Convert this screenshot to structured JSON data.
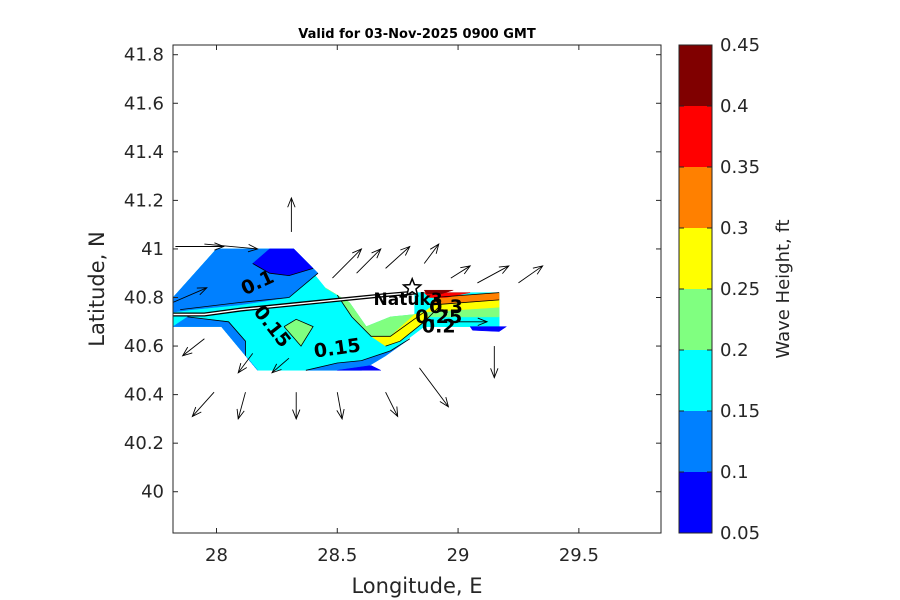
{
  "chart_data": {
    "type": "filled-contour",
    "title": "Valid for 03-Nov-2025 0900 GMT",
    "xlabel": "Longitude, E",
    "ylabel": "Latitude, N",
    "xlim": [
      27.82,
      29.84
    ],
    "ylim": [
      39.83,
      41.84
    ],
    "xticks": [
      {
        "value": 28,
        "label": "28"
      },
      {
        "value": 28.5,
        "label": "28.5"
      },
      {
        "value": 29,
        "label": "29"
      },
      {
        "value": 29.5,
        "label": "29.5"
      }
    ],
    "yticks": [
      {
        "value": 40,
        "label": "40"
      },
      {
        "value": 40.2,
        "label": "40.2"
      },
      {
        "value": 40.4,
        "label": "40.4"
      },
      {
        "value": 40.6,
        "label": "40.6"
      },
      {
        "value": 40.8,
        "label": "40.8"
      },
      {
        "value": 41,
        "label": "41"
      },
      {
        "value": 41.2,
        "label": "41.2"
      },
      {
        "value": 41.4,
        "label": "41.4"
      },
      {
        "value": 41.6,
        "label": "41.6"
      },
      {
        "value": 41.8,
        "label": "41.8"
      }
    ],
    "colorbar": {
      "label": "Wave Height, ft",
      "min": 0.05,
      "max": 0.45,
      "ticks": [
        {
          "value": 0.05,
          "label": "0.05"
        },
        {
          "value": 0.1,
          "label": "0.1"
        },
        {
          "value": 0.15,
          "label": "0.15"
        },
        {
          "value": 0.2,
          "label": "0.2"
        },
        {
          "value": 0.25,
          "label": "0.25"
        },
        {
          "value": 0.3,
          "label": "0.3"
        },
        {
          "value": 0.35,
          "label": "0.35"
        },
        {
          "value": 0.4,
          "label": "0.4"
        },
        {
          "value": 0.45,
          "label": "0.45"
        }
      ],
      "bands": [
        {
          "from": 0.05,
          "to": 0.1,
          "color": "#0000ff"
        },
        {
          "from": 0.1,
          "to": 0.15,
          "color": "#0080ff"
        },
        {
          "from": 0.15,
          "to": 0.2,
          "color": "#00ffff"
        },
        {
          "from": 0.2,
          "to": 0.25,
          "color": "#80ff80"
        },
        {
          "from": 0.25,
          "to": 0.3,
          "color": "#ffff00"
        },
        {
          "from": 0.3,
          "to": 0.35,
          "color": "#ff8000"
        },
        {
          "from": 0.35,
          "to": 0.4,
          "color": "#ff0000"
        },
        {
          "from": 0.4,
          "to": 0.45,
          "color": "#800000"
        }
      ]
    },
    "filled_regions": [
      {
        "name": "base-0.15-0.2",
        "color": "#00ffff",
        "points": [
          [
            27.82,
            40.8
          ],
          [
            28.0,
            41.0
          ],
          [
            28.32,
            41.0
          ],
          [
            28.45,
            40.84
          ],
          [
            28.55,
            40.78
          ],
          [
            28.62,
            40.68
          ],
          [
            28.72,
            40.72
          ],
          [
            28.82,
            40.73
          ],
          [
            28.82,
            40.82
          ],
          [
            29.17,
            40.82
          ],
          [
            29.17,
            40.68
          ],
          [
            28.86,
            40.68
          ],
          [
            28.7,
            40.56
          ],
          [
            28.6,
            40.5
          ],
          [
            28.17,
            40.5
          ],
          [
            28.02,
            40.68
          ],
          [
            27.82,
            40.68
          ]
        ]
      },
      {
        "name": "band-0.1-0.15-north",
        "color": "#0080ff",
        "points": [
          [
            27.82,
            40.8
          ],
          [
            28.0,
            41.0
          ],
          [
            28.32,
            41.0
          ],
          [
            28.42,
            40.9
          ],
          [
            28.3,
            40.8
          ],
          [
            28.1,
            40.77
          ],
          [
            27.9,
            40.75
          ],
          [
            27.82,
            40.74
          ]
        ]
      },
      {
        "name": "band-0.05-0.1-north",
        "color": "#0000ff",
        "points": [
          [
            28.22,
            41.0
          ],
          [
            28.32,
            41.0
          ],
          [
            28.4,
            40.92
          ],
          [
            28.3,
            40.89
          ],
          [
            28.22,
            40.9
          ],
          [
            28.15,
            40.94
          ]
        ]
      },
      {
        "name": "band-0.1-0.15-south-left",
        "color": "#0080ff",
        "points": [
          [
            27.82,
            40.68
          ],
          [
            27.88,
            40.72
          ],
          [
            28.05,
            40.7
          ],
          [
            28.12,
            40.62
          ],
          [
            28.12,
            40.56
          ],
          [
            28.17,
            40.5
          ],
          [
            28.02,
            40.68
          ]
        ]
      },
      {
        "name": "band-0.1-0.15-south",
        "color": "#0080ff",
        "points": [
          [
            28.37,
            40.5
          ],
          [
            28.6,
            40.5
          ],
          [
            28.7,
            40.56
          ],
          [
            28.8,
            40.63
          ],
          [
            28.72,
            40.58
          ],
          [
            28.6,
            40.54
          ],
          [
            28.5,
            40.53
          ]
        ]
      },
      {
        "name": "band-0.05-0.1-south",
        "color": "#0000ff",
        "points": [
          [
            28.5,
            40.5
          ],
          [
            28.68,
            40.5
          ],
          [
            28.64,
            40.52
          ]
        ]
      },
      {
        "name": "band-0.2-0.25-island",
        "color": "#80ff80",
        "points": [
          [
            28.28,
            40.68
          ],
          [
            28.33,
            40.71
          ],
          [
            28.4,
            40.68
          ],
          [
            28.35,
            40.6
          ]
        ]
      },
      {
        "name": "band-0.2-0.25-east",
        "color": "#80ff80",
        "points": [
          [
            28.45,
            40.84
          ],
          [
            28.55,
            40.78
          ],
          [
            28.62,
            40.68
          ],
          [
            28.72,
            40.72
          ],
          [
            28.82,
            40.73
          ],
          [
            28.86,
            40.74
          ],
          [
            28.72,
            40.64
          ],
          [
            28.64,
            40.64
          ],
          [
            28.56,
            40.72
          ],
          [
            28.5,
            40.81
          ]
        ]
      },
      {
        "name": "band-0.25-0.3",
        "color": "#ffff00",
        "points": [
          [
            28.82,
            40.73
          ],
          [
            28.86,
            40.74
          ],
          [
            28.92,
            40.76
          ],
          [
            28.86,
            40.7
          ],
          [
            28.76,
            40.62
          ],
          [
            28.7,
            40.6
          ],
          [
            28.64,
            40.64
          ],
          [
            28.72,
            40.64
          ]
        ]
      },
      {
        "name": "band-0.15-0.2-sw-pocket",
        "color": "#00ffff",
        "points": [
          [
            28.88,
            40.72
          ],
          [
            29.17,
            40.72
          ],
          [
            29.17,
            40.68
          ],
          [
            28.86,
            40.68
          ]
        ]
      },
      {
        "name": "band-0.2-0.25-east-strip",
        "color": "#80ff80",
        "points": [
          [
            28.86,
            40.74
          ],
          [
            29.17,
            40.76
          ],
          [
            29.17,
            40.72
          ],
          [
            28.88,
            40.72
          ]
        ]
      },
      {
        "name": "band-0.25-0.3-east-strip",
        "color": "#ffff00",
        "points": [
          [
            28.9,
            40.77
          ],
          [
            29.17,
            40.79
          ],
          [
            29.17,
            40.76
          ],
          [
            28.86,
            40.74
          ]
        ]
      },
      {
        "name": "band-0.3-0.35",
        "color": "#ff8000",
        "points": [
          [
            28.9,
            40.8
          ],
          [
            29.17,
            40.82
          ],
          [
            29.17,
            40.79
          ],
          [
            28.9,
            40.77
          ]
        ]
      },
      {
        "name": "band-0.35-0.4",
        "color": "#ff0000",
        "points": [
          [
            28.86,
            40.82
          ],
          [
            29.05,
            40.82
          ],
          [
            28.95,
            40.8
          ],
          [
            28.88,
            40.8
          ]
        ]
      },
      {
        "name": "band-0.4-0.45",
        "color": "#800000",
        "points": [
          [
            28.86,
            40.83
          ],
          [
            28.98,
            40.83
          ],
          [
            28.93,
            40.815
          ],
          [
            28.87,
            40.815
          ]
        ]
      },
      {
        "name": "band-0.05-0.1-east-tip",
        "color": "#0000ff",
        "points": [
          [
            29.05,
            40.68
          ],
          [
            29.2,
            40.68
          ],
          [
            29.17,
            40.66
          ],
          [
            29.06,
            40.665
          ]
        ]
      }
    ],
    "contour_lines": [
      {
        "level": 0.1,
        "points": [
          [
            27.85,
            40.75
          ],
          [
            28.1,
            40.78
          ],
          [
            28.3,
            40.8
          ],
          [
            28.42,
            40.9
          ]
        ]
      },
      {
        "level": 0.1,
        "points": [
          [
            28.15,
            40.94
          ],
          [
            28.22,
            40.9
          ],
          [
            28.3,
            40.89
          ],
          [
            28.4,
            40.92
          ]
        ]
      },
      {
        "level": 0.15,
        "points": [
          [
            28.12,
            40.56
          ],
          [
            28.12,
            40.62
          ],
          [
            28.05,
            40.7
          ],
          [
            27.88,
            40.72
          ]
        ]
      },
      {
        "level": 0.15,
        "points": [
          [
            28.37,
            40.5
          ],
          [
            28.5,
            40.53
          ],
          [
            28.6,
            40.54
          ],
          [
            28.72,
            40.58
          ],
          [
            28.8,
            40.63
          ]
        ]
      },
      {
        "level": 0.2,
        "points": [
          [
            28.5,
            40.81
          ],
          [
            28.56,
            40.72
          ],
          [
            28.64,
            40.64
          ],
          [
            28.72,
            40.64
          ],
          [
            28.86,
            40.74
          ]
        ]
      },
      {
        "level": 0.2,
        "points": [
          [
            28.28,
            40.68
          ],
          [
            28.33,
            40.71
          ],
          [
            28.4,
            40.68
          ],
          [
            28.35,
            40.6
          ],
          [
            28.28,
            40.68
          ]
        ]
      },
      {
        "level": 0.25,
        "points": [
          [
            28.7,
            40.6
          ],
          [
            28.76,
            40.62
          ],
          [
            28.86,
            40.7
          ],
          [
            28.92,
            40.76
          ]
        ]
      },
      {
        "level": 0.3,
        "points": [
          [
            28.9,
            40.77
          ],
          [
            29.17,
            40.79
          ]
        ]
      },
      {
        "level": 0.35,
        "points": [
          [
            28.9,
            40.8
          ],
          [
            29.17,
            40.82
          ]
        ]
      }
    ],
    "contour_labels": [
      {
        "text": "0.1",
        "lon": 28.17,
        "lat": 40.86,
        "angle": 25
      },
      {
        "text": "0.15",
        "lon": 28.23,
        "lat": 40.68,
        "angle": -52
      },
      {
        "text": "0.15",
        "lon": 28.5,
        "lat": 40.59,
        "angle": 8
      },
      {
        "text": "0.25",
        "lon": 28.92,
        "lat": 40.72,
        "angle": 0
      },
      {
        "text": "0.3",
        "lon": 28.95,
        "lat": 40.76,
        "angle": 0
      },
      {
        "text": "0.2",
        "lon": 28.92,
        "lat": 40.68,
        "angle": 0
      }
    ],
    "coastline": [
      [
        27.82,
        40.73
      ],
      [
        27.95,
        40.73
      ],
      [
        28.1,
        40.75
      ],
      [
        28.3,
        40.77
      ],
      [
        28.5,
        40.79
      ],
      [
        28.7,
        40.81
      ],
      [
        28.82,
        40.82
      ]
    ],
    "station": {
      "name": "Natuk3",
      "lon": 28.81,
      "lat": 40.84,
      "label_lon": 28.65,
      "label_lat": 40.77
    },
    "wind_vectors": [
      {
        "lon": 27.83,
        "lat": 41.01,
        "u": 0.2,
        "v": 0.0
      },
      {
        "lon": 27.95,
        "lat": 41.02,
        "u": 0.22,
        "v": -0.02
      },
      {
        "lon": 27.82,
        "lat": 40.78,
        "u": 0.14,
        "v": 0.06
      },
      {
        "lon": 28.31,
        "lat": 41.07,
        "u": 0.0,
        "v": 0.14
      },
      {
        "lon": 28.4,
        "lat": 40.95,
        "u": 0.0,
        "v": 0.0
      },
      {
        "lon": 28.48,
        "lat": 40.88,
        "u": 0.12,
        "v": 0.12
      },
      {
        "lon": 28.58,
        "lat": 40.9,
        "u": 0.1,
        "v": 0.1
      },
      {
        "lon": 28.7,
        "lat": 40.92,
        "u": 0.1,
        "v": 0.09
      },
      {
        "lon": 28.86,
        "lat": 40.94,
        "u": 0.06,
        "v": 0.08
      },
      {
        "lon": 28.97,
        "lat": 40.88,
        "u": 0.08,
        "v": 0.05
      },
      {
        "lon": 29.08,
        "lat": 40.86,
        "u": 0.13,
        "v": 0.07
      },
      {
        "lon": 29.25,
        "lat": 40.86,
        "u": 0.1,
        "v": 0.07
      },
      {
        "lon": 28.96,
        "lat": 40.7,
        "u": 0.16,
        "v": 0.0
      },
      {
        "lon": 29.15,
        "lat": 40.6,
        "u": 0.0,
        "v": -0.13
      },
      {
        "lon": 27.95,
        "lat": 40.63,
        "u": -0.09,
        "v": -0.07
      },
      {
        "lon": 28.15,
        "lat": 40.57,
        "u": -0.06,
        "v": -0.08
      },
      {
        "lon": 28.3,
        "lat": 40.55,
        "u": -0.07,
        "v": -0.06
      },
      {
        "lon": 27.99,
        "lat": 40.41,
        "u": -0.09,
        "v": -0.1
      },
      {
        "lon": 28.12,
        "lat": 40.41,
        "u": -0.03,
        "v": -0.11
      },
      {
        "lon": 28.33,
        "lat": 40.41,
        "u": 0.0,
        "v": -0.11
      },
      {
        "lon": 28.5,
        "lat": 40.41,
        "u": 0.02,
        "v": -0.11
      },
      {
        "lon": 28.7,
        "lat": 40.41,
        "u": 0.05,
        "v": -0.1
      },
      {
        "lon": 28.84,
        "lat": 40.51,
        "u": 0.12,
        "v": -0.16
      }
    ]
  }
}
